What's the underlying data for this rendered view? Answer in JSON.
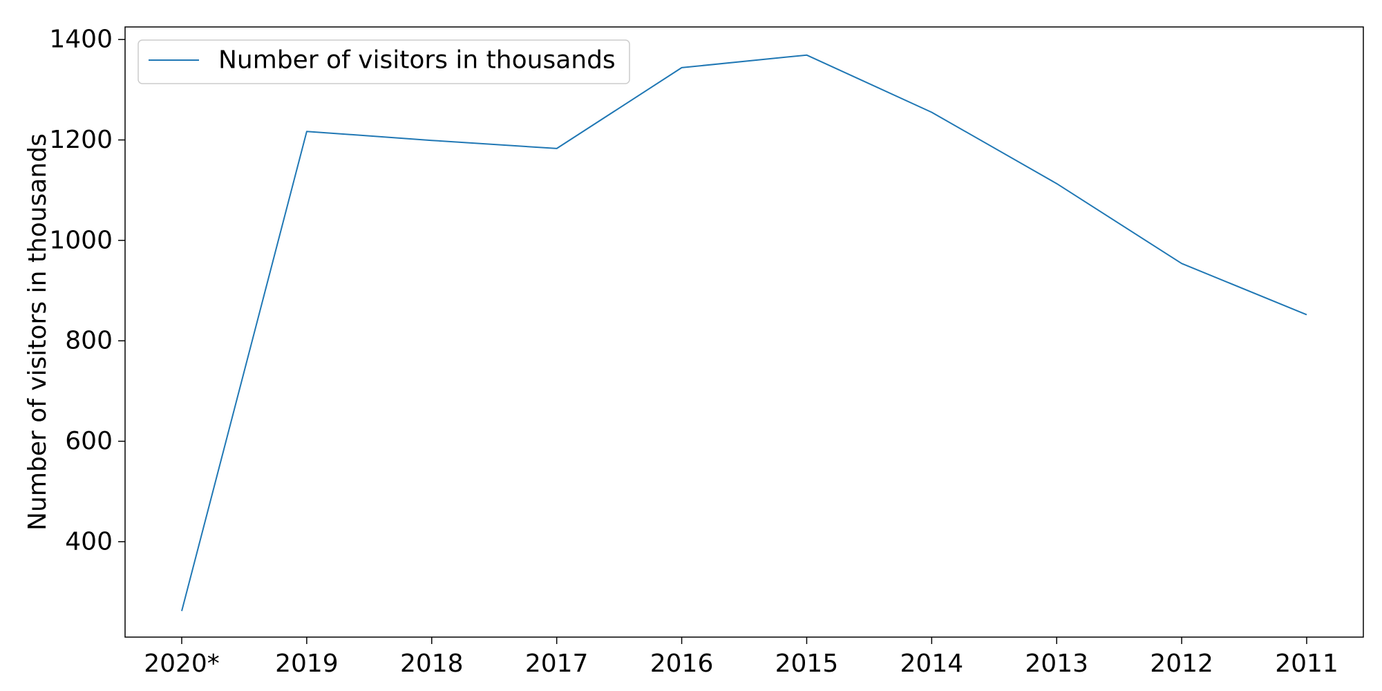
{
  "chart_data": {
    "type": "line",
    "title": "",
    "xlabel": "",
    "ylabel": "Number of visitors in thousands",
    "categories": [
      "2020*",
      "2019",
      "2018",
      "2017",
      "2016",
      "2015",
      "2014",
      "2013",
      "2012",
      "2011"
    ],
    "series": [
      {
        "name": "Number of visitors in thousands",
        "color": "#1f77b4",
        "values": [
          262,
          1217,
          1199,
          1183,
          1344,
          1369,
          1255,
          1113,
          954,
          852
        ]
      }
    ],
    "ylim": [
      210,
      1425
    ],
    "yticks": [
      400,
      600,
      800,
      1000,
      1200,
      1400
    ],
    "grid": false,
    "legend_position": "top-left"
  }
}
